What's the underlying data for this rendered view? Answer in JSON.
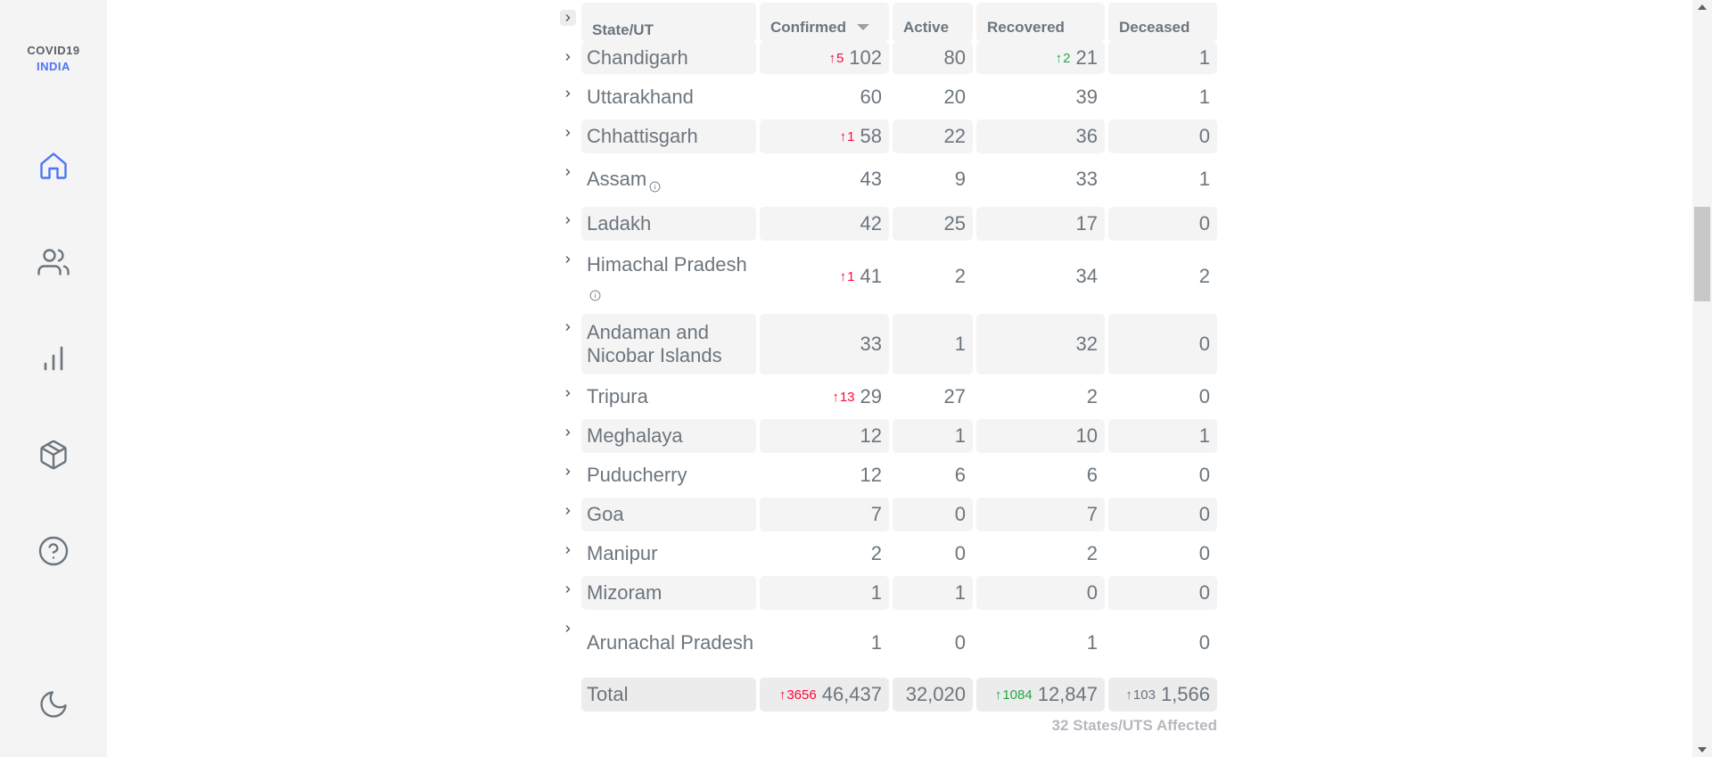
{
  "sidebar": {
    "logo_line1": "COVID19",
    "logo_line2": "INDIA",
    "icons": [
      "home-icon",
      "users-icon",
      "bar-chart-icon",
      "package-icon",
      "help-circle-icon",
      "moon-icon"
    ]
  },
  "colors": {
    "accent": "#4c75f2",
    "red": "#ff073a",
    "green": "#28a745",
    "grey_text": "#6c757d",
    "cell_bg": "#f4f4f5"
  },
  "table": {
    "headers": {
      "state": "State/UT",
      "confirmed": "Confirmed",
      "active": "Active",
      "recovered": "Recovered",
      "deceased": "Deceased"
    },
    "rows": [
      {
        "state": "Chandigarh",
        "confirmed": "102",
        "confirmed_delta": "5",
        "active": "80",
        "recovered": "21",
        "recovered_delta": "2",
        "deceased": "1"
      },
      {
        "state": "Uttarakhand",
        "confirmed": "60",
        "active": "20",
        "recovered": "39",
        "deceased": "1"
      },
      {
        "state": "Chhattisgarh",
        "confirmed": "58",
        "confirmed_delta": "1",
        "active": "22",
        "recovered": "36",
        "deceased": "0"
      },
      {
        "state": "Assam",
        "info": true,
        "confirmed": "43",
        "active": "9",
        "recovered": "33",
        "deceased": "1"
      },
      {
        "state": "Ladakh",
        "confirmed": "42",
        "active": "25",
        "recovered": "17",
        "deceased": "0"
      },
      {
        "state": "Himachal Pradesh",
        "info": true,
        "confirmed": "41",
        "confirmed_delta": "1",
        "active": "2",
        "recovered": "34",
        "deceased": "2"
      },
      {
        "state": "Andaman and Nicobar Islands",
        "confirmed": "33",
        "active": "1",
        "recovered": "32",
        "deceased": "0"
      },
      {
        "state": "Tripura",
        "confirmed": "29",
        "confirmed_delta": "13",
        "active": "27",
        "recovered": "2",
        "deceased": "0"
      },
      {
        "state": "Meghalaya",
        "confirmed": "12",
        "active": "1",
        "recovered": "10",
        "deceased": "1"
      },
      {
        "state": "Puducherry",
        "confirmed": "12",
        "active": "6",
        "recovered": "6",
        "deceased": "0"
      },
      {
        "state": "Goa",
        "confirmed": "7",
        "active": "0",
        "recovered": "7",
        "deceased": "0"
      },
      {
        "state": "Manipur",
        "confirmed": "2",
        "active": "0",
        "recovered": "2",
        "deceased": "0"
      },
      {
        "state": "Mizoram",
        "confirmed": "1",
        "active": "1",
        "recovered": "0",
        "deceased": "0"
      },
      {
        "state": "Arunachal Pradesh",
        "confirmed": "1",
        "active": "0",
        "recovered": "1",
        "deceased": "0"
      }
    ],
    "total": {
      "label": "Total",
      "confirmed": "46,437",
      "confirmed_delta": "3656",
      "active": "32,020",
      "recovered": "12,847",
      "recovered_delta": "1084",
      "deceased": "1,566",
      "deceased_delta": "103"
    },
    "footer_note": "32 States/UTS Affected"
  }
}
